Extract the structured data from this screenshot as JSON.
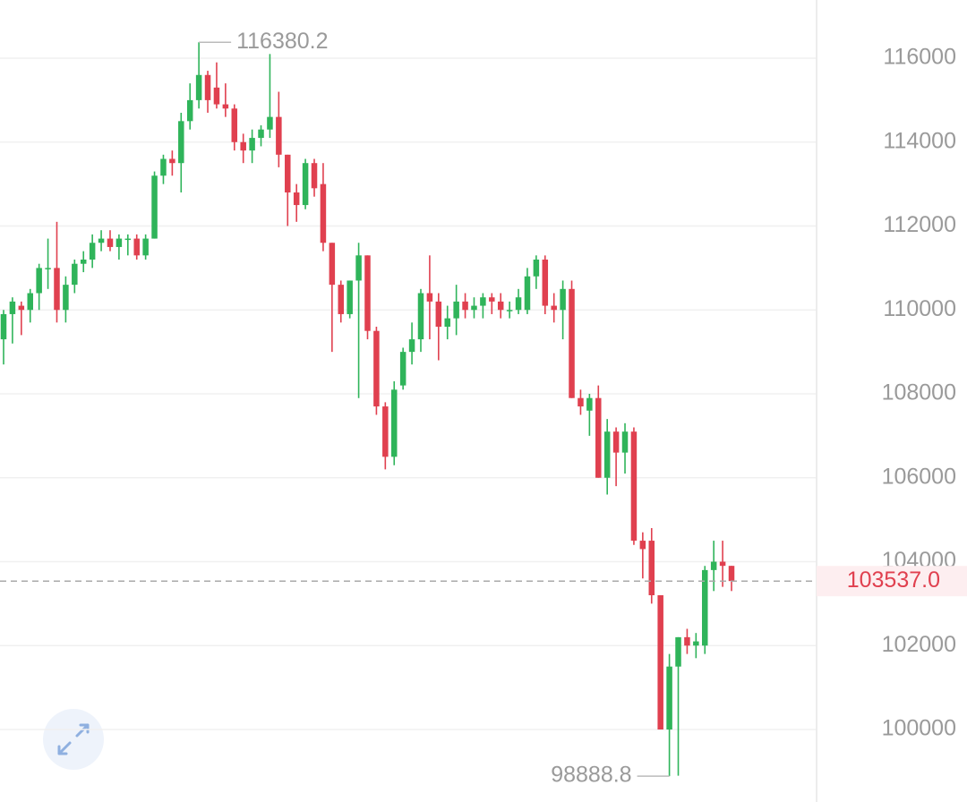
{
  "chart_data": {
    "type": "candlestick",
    "up_color": "#2fb45a",
    "down_color": "#e0404f",
    "ylim": [
      98272,
      117387
    ],
    "yticks": [
      100000,
      102000,
      104000,
      106000,
      108000,
      110000,
      112000,
      114000,
      116000
    ],
    "grid": true,
    "open": [
      109300,
      109900,
      110100,
      110000,
      110400,
      111000,
      111000,
      110000,
      110600,
      111100,
      111200,
      111600,
      111700,
      111500,
      111700,
      111700,
      111300,
      111700,
      113200,
      113600,
      113500,
      114500,
      115000,
      115600,
      115300,
      114900,
      114800,
      114000,
      113800,
      114100,
      114300,
      114600,
      113700,
      112800,
      112500,
      113500,
      113000,
      111600,
      110600,
      109900,
      110700,
      111300,
      109500,
      107700,
      106500,
      108200,
      109000,
      109300,
      110400,
      110200,
      109600,
      109800,
      110200,
      110000,
      110100,
      110300,
      110200,
      110000,
      110000,
      110000,
      110800,
      111200,
      110100,
      110000,
      110500,
      107900,
      107600,
      107900,
      106000,
      107100,
      106600,
      107100,
      104500,
      104500,
      103200,
      100000,
      101500,
      102200,
      102000,
      102000,
      103800,
      104000,
      103900
    ],
    "high": [
      110000,
      110300,
      110200,
      110500,
      111100,
      111700,
      112100,
      110800,
      111200,
      111400,
      111800,
      111900,
      111900,
      111800,
      111800,
      111800,
      111800,
      113300,
      113700,
      113800,
      114700,
      115400,
      116380.2,
      115700,
      115900,
      115400,
      114900,
      114200,
      114300,
      114400,
      116100,
      115200,
      113700,
      113000,
      113600,
      113600,
      113500,
      111600,
      110700,
      110700,
      111600,
      111300,
      109600,
      107800,
      108300,
      109100,
      109700,
      110500,
      111300,
      110400,
      110100,
      110600,
      110400,
      110300,
      110400,
      110400,
      110400,
      110200,
      110500,
      111000,
      111300,
      111300,
      110400,
      110700,
      110700,
      108100,
      108000,
      108200,
      107400,
      107200,
      107300,
      107200,
      104700,
      104800,
      103200,
      101800,
      102200,
      102400,
      102300,
      103900,
      104500,
      104500,
      103900
    ],
    "low": [
      108700,
      109200,
      109400,
      109700,
      110000,
      110500,
      109700,
      109700,
      110400,
      110900,
      111000,
      111400,
      111400,
      111200,
      111300,
      111200,
      111200,
      111700,
      113000,
      113200,
      112800,
      114300,
      114800,
      114700,
      114800,
      114600,
      113800,
      113500,
      113500,
      113900,
      114100,
      113400,
      112000,
      112100,
      112400,
      112700,
      111400,
      109000,
      109700,
      109800,
      107900,
      109300,
      107500,
      106200,
      106300,
      108100,
      108700,
      109000,
      109300,
      108800,
      109300,
      109400,
      109800,
      109800,
      109800,
      109900,
      109800,
      109800,
      109900,
      109900,
      110500,
      109900,
      109700,
      109300,
      107900,
      107500,
      107000,
      106000,
      105600,
      105800,
      106100,
      104400,
      103600,
      103000,
      100000,
      98888.8,
      98900,
      101800,
      101700,
      101800,
      103300,
      103400,
      103300
    ],
    "close": [
      109900,
      110200,
      110000,
      110400,
      111000,
      111000,
      110000,
      110600,
      111100,
      111200,
      111600,
      111700,
      111500,
      111700,
      111700,
      111300,
      111700,
      113200,
      113600,
      113500,
      114500,
      115000,
      115600,
      115000,
      114900,
      114800,
      114000,
      113800,
      114100,
      114300,
      114600,
      113700,
      112800,
      112500,
      113500,
      112900,
      111600,
      110600,
      109900,
      110700,
      111300,
      109500,
      107700,
      106500,
      108100,
      109000,
      109300,
      110400,
      110200,
      109600,
      109800,
      110200,
      110000,
      110100,
      110300,
      110200,
      110000,
      110000,
      110300,
      110800,
      111200,
      110100,
      110000,
      110500,
      107900,
      107700,
      107900,
      106000,
      107100,
      106600,
      107100,
      104500,
      104300,
      103200,
      100000,
      101500,
      102200,
      102000,
      102100,
      103800,
      104000,
      103900,
      103537
    ],
    "last_price": {
      "value": 103537,
      "label": "103537.0"
    }
  }
}
